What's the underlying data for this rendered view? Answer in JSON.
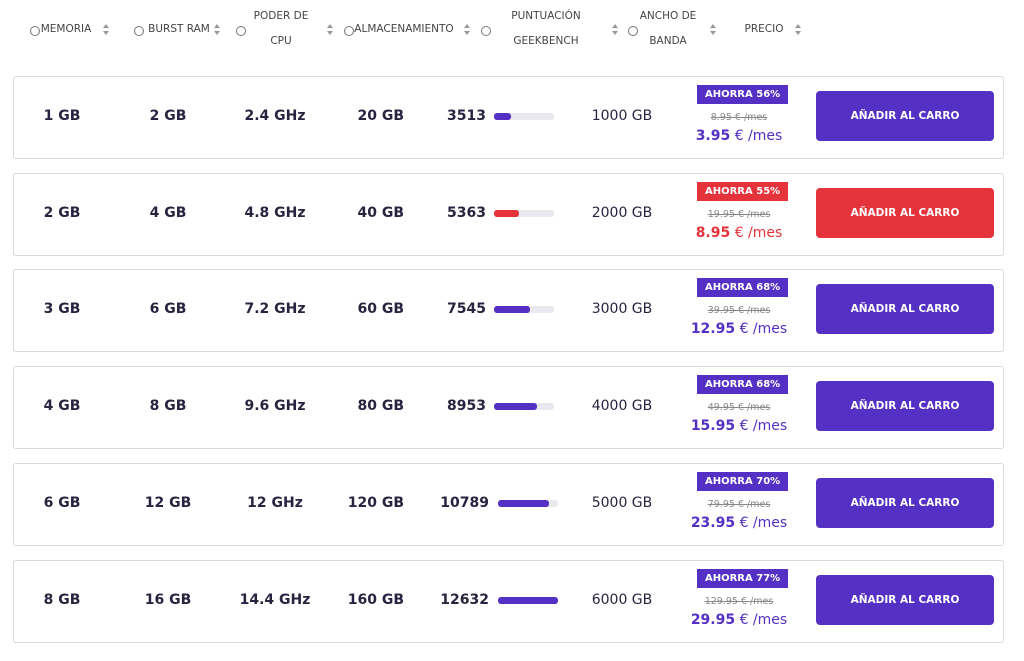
{
  "header": {
    "columns": [
      {
        "lines": [
          "MEMORIA"
        ]
      },
      {
        "lines": [
          "BURST RAM"
        ]
      },
      {
        "lines": [
          "PODER DE",
          "CPU"
        ]
      },
      {
        "lines": [
          "ALMACENAMIENTO"
        ]
      },
      {
        "lines": [
          "PUNTUACIÓN",
          "GEEKBENCH"
        ]
      },
      {
        "lines": [
          "ANCHO DE",
          "BANDA"
        ]
      },
      {
        "lines": [
          "PRECIO"
        ]
      }
    ]
  },
  "table": {
    "rows": [
      {
        "memory": "1 GB",
        "burst": "2 GB",
        "cpu": "2.4 GHz",
        "storage": "20 GB",
        "score": 3513,
        "bandwidth": "1000 GB",
        "badge": "AHORRA 56%",
        "old_price": "8.95 € /mes",
        "price": "3.95",
        "unit": "€ /mes",
        "button": "AÑADIR AL CARRO",
        "accent": "#5430c4"
      },
      {
        "memory": "2 GB",
        "burst": "4 GB",
        "cpu": "4.8 GHz",
        "storage": "40 GB",
        "score": 5363,
        "bandwidth": "2000 GB",
        "badge": "AHORRA 55%",
        "old_price": "19.95 € /mes",
        "price": "8.95",
        "unit": "€ /mes",
        "button": "AÑADIR AL CARRO",
        "accent": "#e5333b"
      },
      {
        "memory": "3 GB",
        "burst": "6 GB",
        "cpu": "7.2 GHz",
        "storage": "60 GB",
        "score": 7545,
        "bandwidth": "3000 GB",
        "badge": "AHORRA 68%",
        "old_price": "39.95 € /mes",
        "price": "12.95",
        "unit": "€ /mes",
        "button": "AÑADIR AL CARRO",
        "accent": "#5430c4"
      },
      {
        "memory": "4 GB",
        "burst": "8 GB",
        "cpu": "9.6 GHz",
        "storage": "80 GB",
        "score": 8953,
        "bandwidth": "4000 GB",
        "badge": "AHORRA 68%",
        "old_price": "49.95 € /mes",
        "price": "15.95",
        "unit": "€ /mes",
        "button": "AÑADIR AL CARRO",
        "accent": "#5430c4"
      },
      {
        "memory": "6 GB",
        "burst": "12 GB",
        "cpu": "12 GHz",
        "storage": "120 GB",
        "score": 10789,
        "bandwidth": "5000 GB",
        "badge": "AHORRA 70%",
        "old_price": "79.95 € /mes",
        "price": "23.95",
        "unit": "€ /mes",
        "button": "AÑADIR AL CARRO",
        "accent": "#5430c4"
      },
      {
        "memory": "8 GB",
        "burst": "16 GB",
        "cpu": "14.4 GHz",
        "storage": "160 GB",
        "score": 12632,
        "bandwidth": "6000 GB",
        "badge": "AHORRA 77%",
        "old_price": "129.95 € /mes",
        "price": "29.95",
        "unit": "€ /mes",
        "button": "AÑADIR AL CARRO",
        "accent": "#5430c4"
      }
    ]
  }
}
